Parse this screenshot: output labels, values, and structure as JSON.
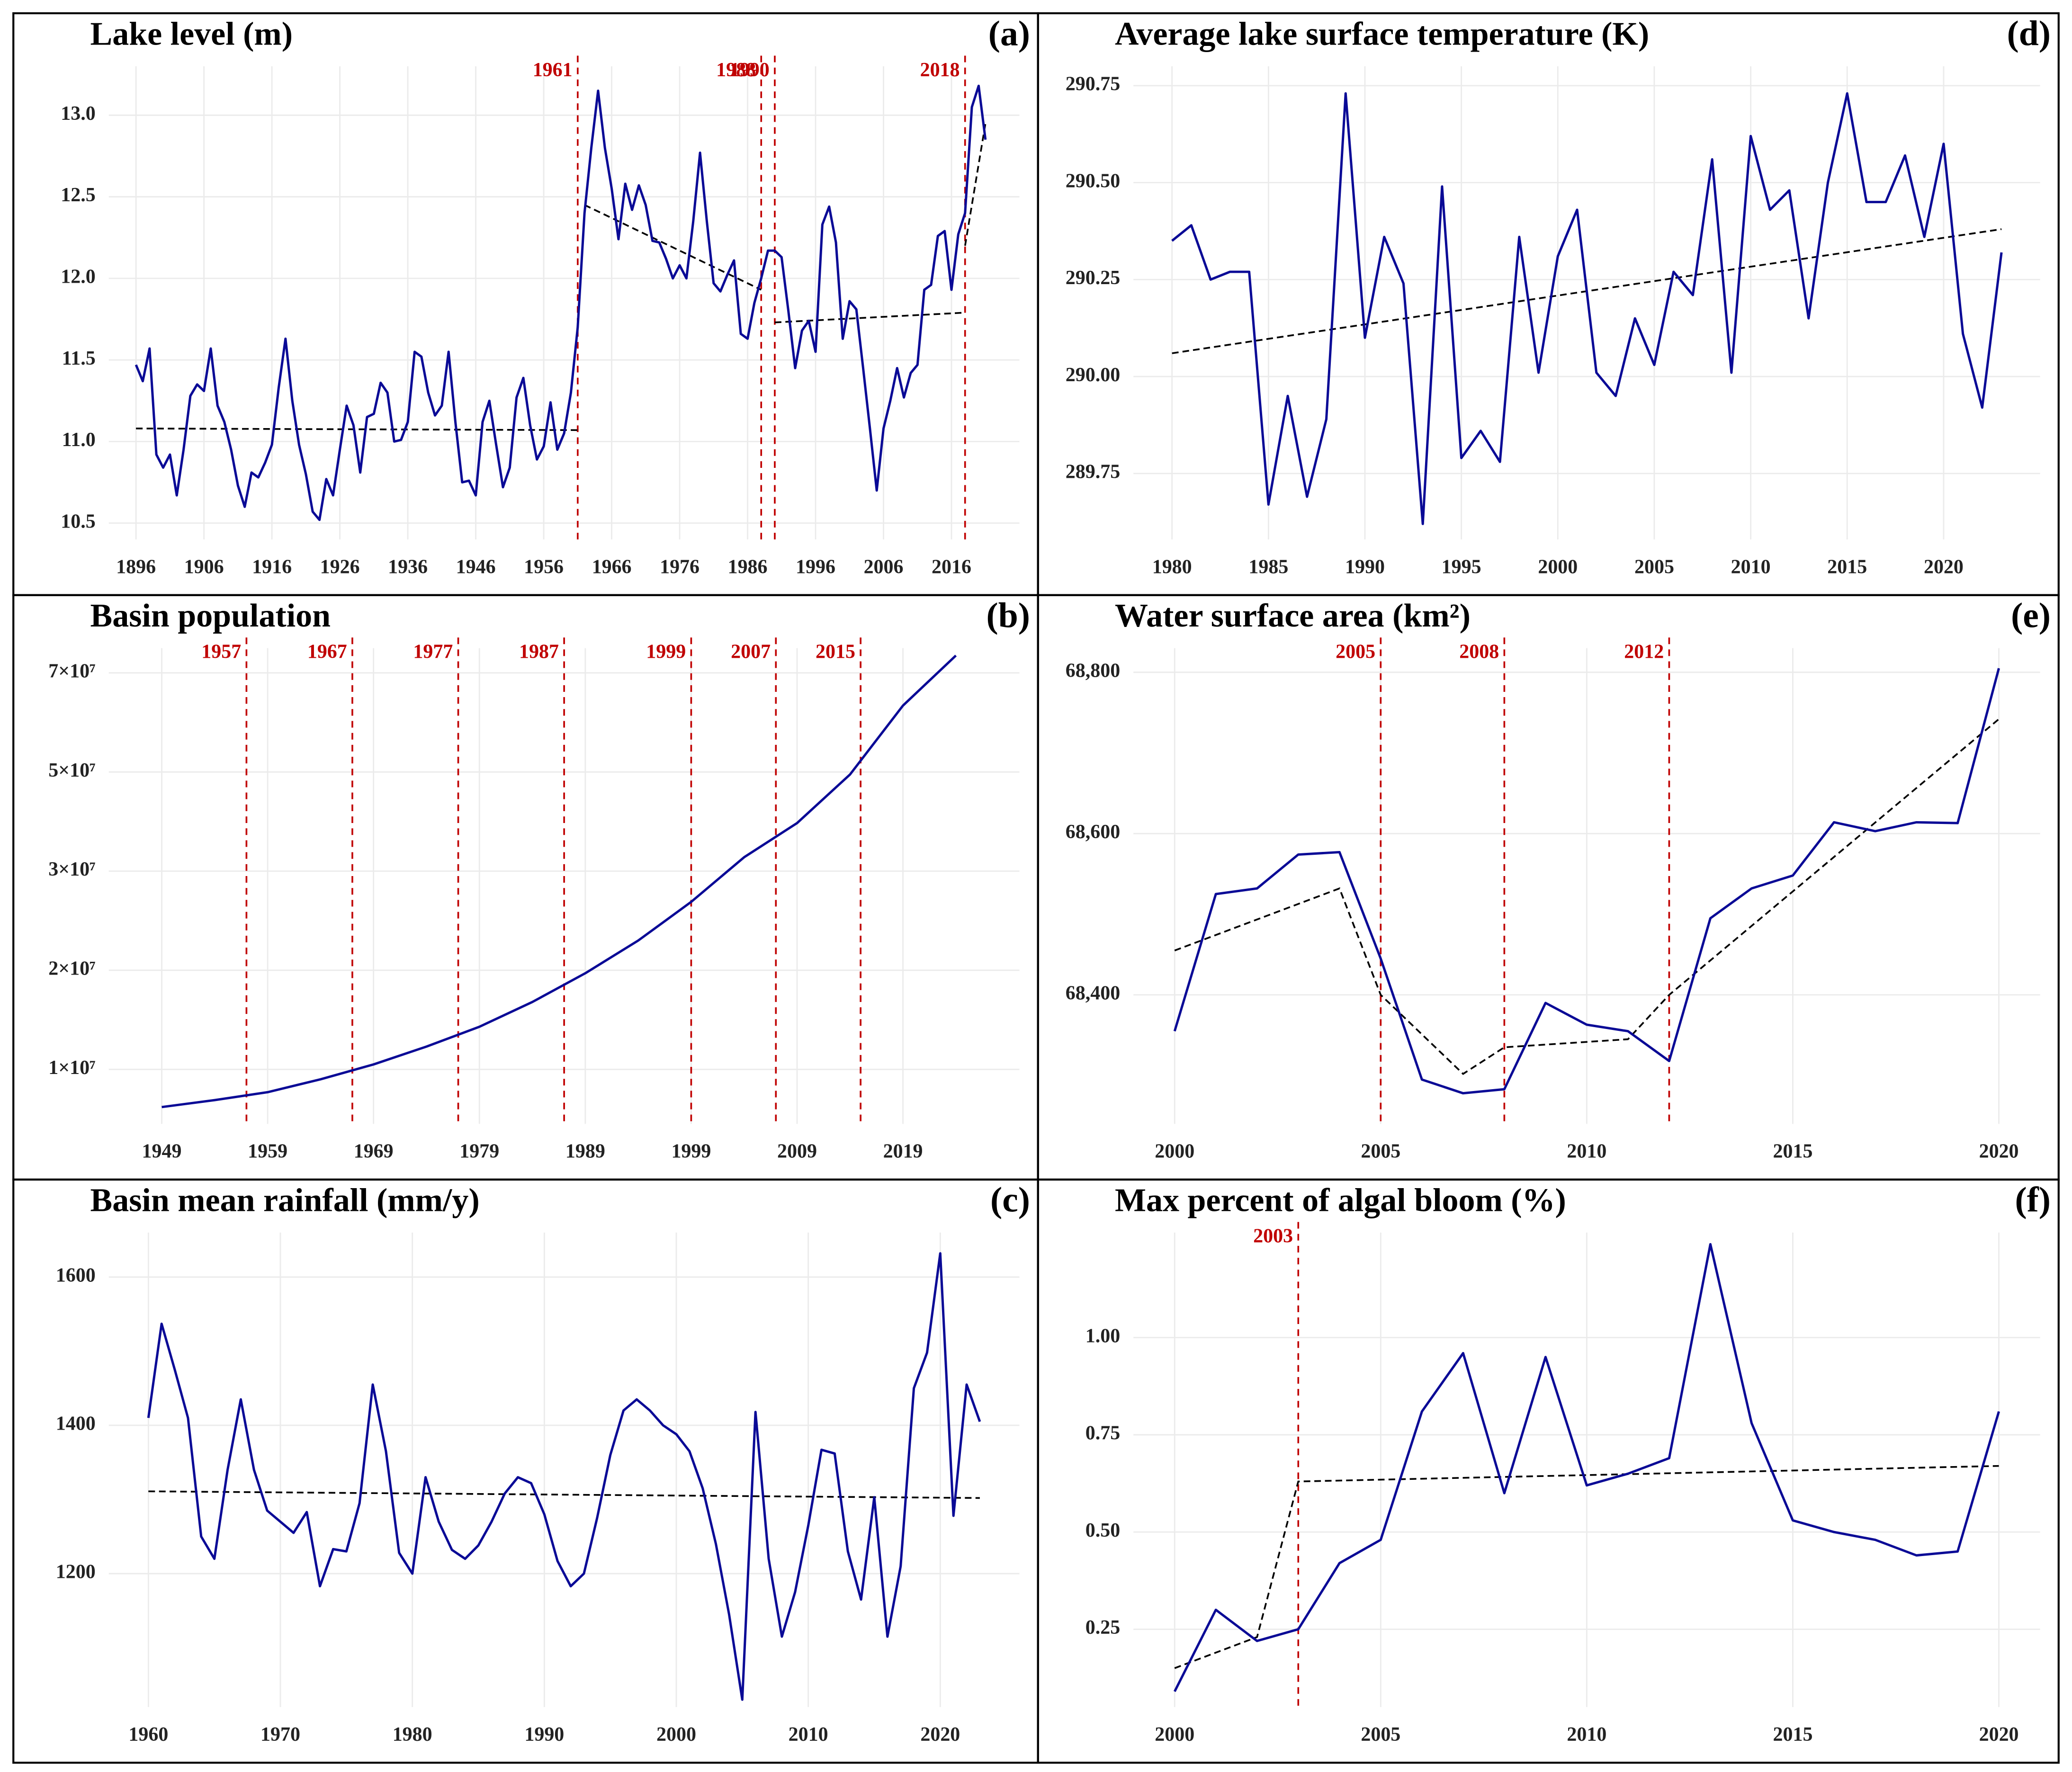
{
  "chart_data": [
    {
      "type": "line",
      "title": "Lake level (m)",
      "panel": "(a)",
      "x": [
        1896,
        1897,
        1898,
        1899,
        1900,
        1901,
        1902,
        1903,
        1904,
        1905,
        1906,
        1907,
        1908,
        1909,
        1910,
        1911,
        1912,
        1913,
        1914,
        1915,
        1916,
        1917,
        1918,
        1919,
        1920,
        1921,
        1922,
        1923,
        1924,
        1925,
        1926,
        1927,
        1928,
        1929,
        1930,
        1931,
        1932,
        1933,
        1934,
        1935,
        1936,
        1937,
        1938,
        1939,
        1940,
        1941,
        1942,
        1943,
        1944,
        1945,
        1946,
        1947,
        1948,
        1949,
        1950,
        1951,
        1952,
        1953,
        1954,
        1955,
        1956,
        1957,
        1958,
        1959,
        1960,
        1961,
        1962,
        1963,
        1964,
        1965,
        1966,
        1967,
        1968,
        1969,
        1970,
        1971,
        1972,
        1973,
        1974,
        1975,
        1976,
        1977,
        1978,
        1979,
        1980,
        1981,
        1982,
        1983,
        1984,
        1985,
        1986,
        1987,
        1988,
        1989,
        1990,
        1991,
        1992,
        1993,
        1994,
        1995,
        1996,
        1997,
        1998,
        1999,
        2000,
        2001,
        2002,
        2003,
        2004,
        2005,
        2006,
        2007,
        2008,
        2009,
        2010,
        2011,
        2012,
        2013,
        2014,
        2015,
        2016,
        2017,
        2018,
        2019,
        2020,
        2021
      ],
      "series": [
        {
          "color": "#0a0a96",
          "values": [
            11.47,
            11.37,
            11.57,
            10.92,
            10.84,
            10.92,
            10.67,
            10.95,
            11.28,
            11.35,
            11.31,
            11.57,
            11.22,
            11.12,
            10.95,
            10.73,
            10.6,
            10.81,
            10.78,
            10.87,
            10.98,
            11.33,
            11.63,
            11.25,
            10.98,
            10.8,
            10.57,
            10.52,
            10.77,
            10.67,
            10.95,
            11.22,
            11.1,
            10.81,
            11.15,
            11.17,
            11.36,
            11.3,
            11,
            11.01,
            11.12,
            11.55,
            11.52,
            11.3,
            11.16,
            11.22,
            11.55,
            11.12,
            10.75,
            10.76,
            10.67,
            11.12,
            11.25,
            10.98,
            10.72,
            10.84,
            11.27,
            11.39,
            11.1,
            10.89,
            10.97,
            11.24,
            10.95,
            11.05,
            11.3,
            11.7,
            12.4,
            12.8,
            13.15,
            12.8,
            12.55,
            12.24,
            12.58,
            12.42,
            12.57,
            12.45,
            12.23,
            12.22,
            12.12,
            12,
            12.08,
            12,
            12.35,
            12.77,
            12.35,
            11.97,
            11.92,
            12.02,
            12.11,
            11.66,
            11.63,
            11.85,
            12,
            12.17,
            12.17,
            12.13,
            11.8,
            11.45,
            11.68,
            11.74,
            11.55,
            12.33,
            12.44,
            12.22,
            11.63,
            11.86,
            11.81,
            11.45,
            11.08,
            10.7,
            11.08,
            11.25,
            11.45,
            11.27,
            11.42,
            11.47,
            11.93,
            11.96,
            12.26,
            12.29,
            11.93,
            12.27,
            12.4,
            13.05,
            13.18,
            12.85
          ]
        }
      ],
      "trend": {
        "color": "#000000",
        "segments": [
          {
            "x": [
              1896,
              1961
            ],
            "values": [
              11.08,
              11.07
            ]
          },
          {
            "x": [
              1962,
              1988
            ],
            "values": [
              12.45,
              11.93
            ]
          },
          {
            "x": [
              1990,
              2018
            ],
            "values": [
              11.73,
              11.79
            ]
          },
          {
            "x": [
              2018,
              2021
            ],
            "values": [
              12.2,
              12.95
            ]
          }
        ]
      },
      "breakpoints": [
        1961,
        1988,
        1990,
        2018
      ],
      "breakpoint_color": "#c00000",
      "xlim": [
        1892,
        2026
      ],
      "xticks": [
        1896,
        1906,
        1916,
        1926,
        1936,
        1946,
        1956,
        1966,
        1976,
        1986,
        1996,
        2006,
        2016
      ],
      "ylim": [
        10.4,
        13.3
      ],
      "yticks": [
        {
          "value": 10.5,
          "label": "10.5"
        },
        {
          "value": 11,
          "label": "11.0"
        },
        {
          "value": 11.5,
          "label": "11.5"
        },
        {
          "value": 12,
          "label": "12.0"
        },
        {
          "value": 12.5,
          "label": "12.5"
        },
        {
          "value": 13,
          "label": "13.0"
        }
      ],
      "grid": true
    },
    {
      "type": "line",
      "title": "Basin population",
      "panel": "(b)",
      "x": [
        1949,
        1954,
        1959,
        1964,
        1969,
        1974,
        1979,
        1984,
        1989,
        1994,
        1999,
        2004,
        2009,
        2014,
        2019,
        2024
      ],
      "series": [
        {
          "color": "#0a0a96",
          "values": [
            6200000,
            6900000,
            7700000,
            9000000,
            10500000,
            12300000,
            14300000,
            16800000,
            19700000,
            23000000,
            26900000,
            32800000,
            39700000,
            49500000,
            63400000,
            73500000
          ]
        }
      ],
      "breakpoints": [
        1957,
        1967,
        1977,
        1987,
        1999,
        2007,
        2015
      ],
      "breakpoint_color": "#c00000",
      "xlim": [
        1944,
        2030
      ],
      "xticks": [
        1949,
        1959,
        1969,
        1979,
        1989,
        1999,
        2009,
        2019
      ],
      "yscale": "ticks",
      "ylim": [
        4500000,
        75000000
      ],
      "yticks": [
        {
          "value": 10000000,
          "label": "1×10⁷"
        },
        {
          "value": 20000000,
          "label": "2×10⁷"
        },
        {
          "value": 30000000,
          "label": "3×10⁷"
        },
        {
          "value": 50000000,
          "label": "5×10⁷"
        },
        {
          "value": 70000000,
          "label": "7×10⁷"
        }
      ],
      "grid": true
    },
    {
      "type": "line",
      "title": "Basin mean rainfall (mm/y)",
      "panel": "(c)",
      "x": [
        1960,
        1961,
        1962,
        1963,
        1964,
        1965,
        1966,
        1967,
        1968,
        1969,
        1970,
        1971,
        1972,
        1973,
        1974,
        1975,
        1976,
        1977,
        1978,
        1979,
        1980,
        1981,
        1982,
        1983,
        1984,
        1985,
        1986,
        1987,
        1988,
        1989,
        1990,
        1991,
        1992,
        1993,
        1994,
        1995,
        1996,
        1997,
        1998,
        1999,
        2000,
        2001,
        2002,
        2003,
        2004,
        2005,
        2006,
        2007,
        2008,
        2009,
        2010,
        2011,
        2012,
        2013,
        2014,
        2015,
        2016,
        2017,
        2018,
        2019,
        2020,
        2021,
        2022,
        2023
      ],
      "series": [
        {
          "color": "#0a0a96",
          "values": [
            1410,
            1537,
            1475,
            1410,
            1250,
            1220,
            1340,
            1435,
            1340,
            1285,
            1270,
            1255,
            1283,
            1183,
            1233,
            1230,
            1295,
            1455,
            1365,
            1228,
            1200,
            1330,
            1270,
            1232,
            1220,
            1238,
            1270,
            1308,
            1330,
            1322,
            1280,
            1217,
            1183,
            1200,
            1275,
            1360,
            1420,
            1435,
            1420,
            1400,
            1388,
            1365,
            1315,
            1240,
            1145,
            1030,
            1418,
            1220,
            1115,
            1175,
            1265,
            1367,
            1362,
            1230,
            1165,
            1303,
            1115,
            1210,
            1450,
            1498,
            1632,
            1278,
            1455,
            1405
          ]
        }
      ],
      "trend": {
        "color": "#000000",
        "segments": [
          {
            "x": [
              1960,
              2023
            ],
            "values": [
              1311,
              1302
            ]
          }
        ]
      },
      "xlim": [
        1957,
        2026
      ],
      "xticks": [
        1960,
        1970,
        1980,
        1990,
        2000,
        2010,
        2020
      ],
      "ylim": [
        1020,
        1660
      ],
      "yticks": [
        1200,
        1400,
        1600
      ],
      "grid": true
    },
    {
      "type": "line",
      "title": "Average lake surface temperature (K)",
      "panel": "(d)",
      "x": [
        1980,
        1981,
        1982,
        1983,
        1984,
        1985,
        1986,
        1987,
        1988,
        1989,
        1990,
        1991,
        1992,
        1993,
        1994,
        1995,
        1996,
        1997,
        1998,
        1999,
        2000,
        2001,
        2002,
        2003,
        2004,
        2005,
        2006,
        2007,
        2008,
        2009,
        2010,
        2011,
        2012,
        2013,
        2014,
        2015,
        2016,
        2017,
        2018,
        2019,
        2020,
        2021,
        2022,
        2023
      ],
      "series": [
        {
          "color": "#0a0a96",
          "values": [
            290.35,
            290.39,
            290.25,
            290.27,
            290.27,
            289.67,
            289.95,
            289.69,
            289.89,
            290.73,
            290.1,
            290.36,
            290.24,
            289.62,
            290.49,
            289.79,
            289.86,
            289.78,
            290.36,
            290.01,
            290.31,
            290.43,
            290.01,
            289.95,
            290.15,
            290.03,
            290.27,
            290.21,
            290.56,
            290.01,
            290.62,
            290.43,
            290.48,
            290.15,
            290.5,
            290.73,
            290.45,
            290.45,
            290.57,
            290.36,
            290.6,
            290.11,
            289.92,
            290.32
          ]
        }
      ],
      "trend": {
        "color": "#000000",
        "segments": [
          {
            "x": [
              1980,
              2023
            ],
            "values": [
              290.06,
              290.38
            ]
          }
        ]
      },
      "xlim": [
        1978,
        2025
      ],
      "xticks": [
        1980,
        1985,
        1990,
        1995,
        2000,
        2005,
        2010,
        2015,
        2020
      ],
      "ylim": [
        289.58,
        290.8
      ],
      "yticks": [
        289.75,
        {
          "value": 290,
          "label": "290.00"
        },
        290.25,
        {
          "value": 290.5,
          "label": "290.50"
        },
        290.75
      ],
      "grid": true
    },
    {
      "type": "line",
      "title": "Water surface area (km²)",
      "panel": "(e)",
      "x": [
        2000,
        2001,
        2002,
        2003,
        2004,
        2005,
        2006,
        2007,
        2008,
        2009,
        2010,
        2011,
        2012,
        2013,
        2014,
        2015,
        2016,
        2017,
        2018,
        2019,
        2020
      ],
      "series": [
        {
          "color": "#0a0a96",
          "values": [
            68355,
            68525,
            68532,
            68574,
            68577,
            68445,
            68295,
            68278,
            68283,
            68390,
            68363,
            68355,
            68318,
            68495,
            68532,
            68548,
            68614,
            68603,
            68614,
            68613,
            68805
          ]
        }
      ],
      "trend": {
        "color": "#000000",
        "segments": [
          {
            "x": [
              2000,
              2004,
              2005,
              2007,
              2008,
              2011,
              2012,
              2020
            ],
            "values": [
              68455,
              68532,
              68400,
              68302,
              68335,
              68345,
              68400,
              68742
            ]
          }
        ]
      },
      "breakpoints": [
        2005,
        2008,
        2012
      ],
      "breakpoint_color": "#c00000",
      "xlim": [
        1999,
        2021
      ],
      "xticks": [
        2000,
        2005,
        2010,
        2015,
        2020
      ],
      "ylim": [
        68240,
        68830
      ],
      "yticks": [
        {
          "value": 68400,
          "label": "68,400"
        },
        {
          "value": 68600,
          "label": "68,600"
        },
        {
          "value": 68800,
          "label": "68,800"
        }
      ],
      "grid": true
    },
    {
      "type": "line",
      "title": "Max percent of algal bloom (%)",
      "panel": "(f)",
      "x": [
        2000,
        2001,
        2002,
        2003,
        2004,
        2005,
        2006,
        2007,
        2008,
        2009,
        2010,
        2011,
        2012,
        2013,
        2014,
        2015,
        2016,
        2017,
        2018,
        2019,
        2020
      ],
      "series": [
        {
          "color": "#0a0a96",
          "values": [
            0.09,
            0.3,
            0.22,
            0.25,
            0.42,
            0.48,
            0.81,
            0.96,
            0.6,
            0.95,
            0.62,
            0.65,
            0.69,
            1.24,
            0.78,
            0.53,
            0.5,
            0.48,
            0.44,
            0.45,
            0.81
          ]
        }
      ],
      "trend": {
        "color": "#000000",
        "segments": [
          {
            "x": [
              2000,
              2002,
              2003,
              2020
            ],
            "values": [
              0.15,
              0.23,
              0.63,
              0.67
            ]
          }
        ]
      },
      "breakpoints": [
        2003
      ],
      "breakpoint_color": "#c00000",
      "xlim": [
        1999,
        2021
      ],
      "xticks": [
        2000,
        2005,
        2010,
        2015,
        2020
      ],
      "ylim": [
        0.05,
        1.27
      ],
      "yticks": [
        0.25,
        {
          "value": 0.5,
          "label": "0.50"
        },
        0.75,
        {
          "value": 1,
          "label": "1.00"
        }
      ],
      "grid": true
    }
  ]
}
